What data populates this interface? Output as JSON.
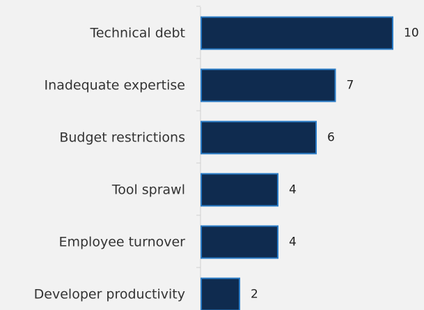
{
  "colors": {
    "background": "#f2f2f2",
    "bar_fill": "#0f2b4f",
    "bar_stroke": "#2a7cc7",
    "axis": "#d0d0d0",
    "label_text": "#333333"
  },
  "chart_data": {
    "type": "bar",
    "orientation": "horizontal",
    "categories": [
      "Technical debt",
      "Inadequate expertise",
      "Budget restrictions",
      "Tool sprawl",
      "Employee turnover",
      "Developer productivity"
    ],
    "values": [
      10,
      7,
      6,
      4,
      4,
      2
    ],
    "data_labels": [
      "10",
      "7",
      "6",
      "4",
      "4",
      "2"
    ],
    "title": "",
    "xlabel": "",
    "ylabel": "",
    "xlim": [
      0,
      10
    ],
    "grid": false,
    "legend": "none"
  }
}
